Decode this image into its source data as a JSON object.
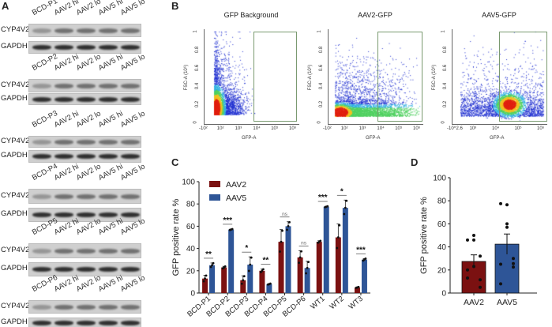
{
  "panelA": {
    "label": "A",
    "row_labels": [
      "CYP4V2",
      "GAPDH"
    ],
    "blots": [
      {
        "lanes": [
          "BCD-P1",
          "AAV2 hi",
          "AAV2 lo",
          "AAV5 hi",
          "AAV5 lo"
        ]
      },
      {
        "lanes": [
          "BCD-P2",
          "AAV2 hi",
          "AAV2 lo",
          "AAV5 hi",
          "AAV5 lo"
        ]
      },
      {
        "lanes": [
          "BCD-P3",
          "AAV2 hi",
          "AAV2 lo",
          "AAV5 hi",
          "AAV5 lo"
        ]
      },
      {
        "lanes": [
          "BCD-P4",
          "AAV2 hi",
          "AAV2 lo",
          "AAV5 hi",
          "AAV5 lo"
        ]
      },
      {
        "lanes": [
          "BCD-P5",
          "AAV2 hi",
          "AAV2 lo",
          "AAV5 hi",
          "AAV5 lo"
        ]
      },
      {
        "lanes": [
          "BCD-P6",
          "AAV2 hi",
          "AAV2 lo",
          "AAV5 hi",
          "AAV5 lo"
        ]
      }
    ]
  },
  "panelB": {
    "label": "B",
    "plots": [
      {
        "title": "GFP Background",
        "xticks": [
          "-10²",
          "10²",
          "10³",
          "10⁴",
          "10⁵",
          "10⁶"
        ]
      },
      {
        "title": "AAV2-GFP",
        "xticks": [
          "-10²",
          "10²",
          "10³",
          "10⁴",
          "10⁵",
          "10⁶"
        ]
      },
      {
        "title": "AAV5-GFP",
        "xticks": [
          "-10^2.6",
          "10³",
          "10⁴",
          "10⁵",
          "10⁶"
        ]
      }
    ],
    "xlabel": "GFP-A",
    "ylabel": "FSC-A (10⁶)",
    "yticks": [
      "0",
      "0.2",
      "0.4",
      "0.6",
      "0.8",
      "1"
    ]
  },
  "colors": {
    "AAV2": "#7b1111",
    "AAV5": "#2e5597"
  },
  "chart_data": [
    {
      "panel": "C",
      "type": "bar",
      "ylabel": "GFP positive rate %",
      "ylim": [
        0,
        100
      ],
      "yticks": [
        0,
        20,
        40,
        60,
        80,
        100
      ],
      "legend": "top-left",
      "categories": [
        "BCD-P1",
        "BCD-P2",
        "BCD-P3",
        "BCD-P4",
        "BCD-P5",
        "BCD-P6",
        "WT1",
        "WT2",
        "WT3"
      ],
      "series": [
        {
          "name": "AAV2",
          "values": [
            13,
            23,
            11.5,
            20,
            46,
            32,
            46,
            50,
            5
          ],
          "errors": [
            3,
            1,
            4,
            1.5,
            11,
            6,
            1,
            12,
            0.5
          ]
        },
        {
          "name": "AAV5",
          "values": [
            25,
            57,
            25.5,
            8,
            60,
            22.5,
            77.5,
            76.5,
            30
          ],
          "errors": [
            2,
            0.5,
            7,
            0.5,
            4,
            6,
            0.5,
            7,
            1
          ]
        }
      ],
      "significance": [
        "**",
        "***",
        "*",
        "**",
        "ns",
        "ns",
        "***",
        "*",
        "***"
      ]
    },
    {
      "panel": "D",
      "type": "bar",
      "ylabel": "GFP positive rate %",
      "ylim": [
        0,
        100
      ],
      "yticks": [
        0,
        20,
        40,
        60,
        80,
        100
      ],
      "categories": [
        "AAV2",
        "AAV5"
      ],
      "values": [
        27.4,
        42.4
      ],
      "errors": [
        5.7,
        8.8
      ],
      "points": [
        [
          13,
          23,
          11.5,
          20,
          46,
          32,
          46,
          50,
          5
        ],
        [
          25,
          57,
          25.5,
          8,
          60,
          22.5,
          77.5,
          76.5,
          30
        ]
      ]
    }
  ],
  "labels": {
    "C": "C",
    "D": "D"
  }
}
